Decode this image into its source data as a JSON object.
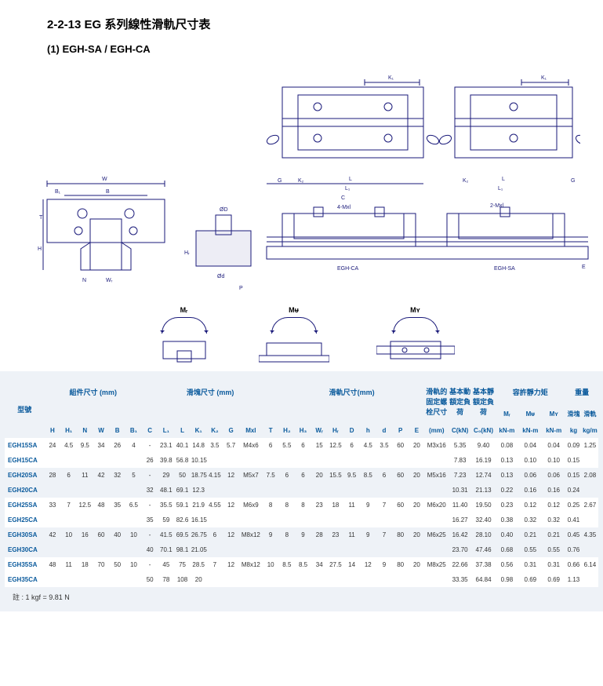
{
  "titles": {
    "main": "2-2-13 EG 系列線性滑軌尺寸表",
    "sub": "(1) EGH-SA / EGH-CA"
  },
  "diagram_labels": {
    "k1": "K₁",
    "w": "W",
    "b1": "B₁",
    "b": "B",
    "t": "T",
    "h": "H",
    "n": "N",
    "wr": "Wᵣ",
    "od_big": "ØD",
    "od_small": "Ød",
    "hr": "Hᵣ",
    "p": "P",
    "e": "E",
    "g": "G",
    "k2": "K₂",
    "l": "L",
    "l1": "L₁",
    "c": "C",
    "m4": "4-Mxl",
    "m2": "2-Mxl",
    "egh_ca": "EGH-CA",
    "egh_sa": "EGH-SA"
  },
  "moments": {
    "mr": "Mᵣ",
    "mp": "Mᵾ",
    "my": "Mʏ"
  },
  "table": {
    "group_headers": {
      "model": "型號",
      "assembly": "組件尺寸\n(mm)",
      "block": "滑塊尺寸 (mm)",
      "rail": "滑軌尺寸(mm)",
      "bolt": "滑軌的固定螺栓尺寸",
      "dyn": "基本動額定負荷",
      "stat": "基本靜額定負荷",
      "moment": "容許靜力矩",
      "weight": "重量"
    },
    "col_headers": [
      "H",
      "H₁",
      "N",
      "W",
      "B",
      "B₁",
      "C",
      "L₁",
      "L",
      "K₁",
      "K₂",
      "G",
      "Mxl",
      "T",
      "H₂",
      "H₃",
      "Wᵣ",
      "Hᵣ",
      "D",
      "h",
      "d",
      "P",
      "E",
      "(mm)",
      "C(kN)",
      "C₀(kN)",
      "Mᵣ",
      "Mᵾ",
      "Mʏ",
      "滑塊",
      "滑軌"
    ],
    "subunits": {
      "mr": "kN-m",
      "mp": "kN-m",
      "my": "kN-m",
      "wb": "kg",
      "wr": "kg/m"
    },
    "rows": [
      {
        "model": "EGH15SA",
        "H": "24",
        "H1": "4.5",
        "N": "9.5",
        "W": "34",
        "B": "26",
        "B1": "4",
        "C": "-",
        "L1": "23.1",
        "L": "40.1",
        "K1": "14.8",
        "K2": "3.5",
        "G": "5.7",
        "Mxl": "M4x6",
        "T": "6",
        "H2": "5.5",
        "H3": "6",
        "Wr": "15",
        "Hr": "12.5",
        "D": "6",
        "h": "4.5",
        "d": "3.5",
        "P": "60",
        "E": "20",
        "bolt": "M3x16",
        "Ck": "5.35",
        "C0": "9.40",
        "Mr": "0.08",
        "Mp": "0.04",
        "My": "0.04",
        "Wb": "0.09",
        "Wrw": "1.25"
      },
      {
        "model": "EGH15CA",
        "H": "",
        "H1": "",
        "N": "",
        "W": "",
        "B": "",
        "B1": "",
        "C": "26",
        "L1": "39.8",
        "L": "56.8",
        "K1": "10.15",
        "K2": "",
        "G": "",
        "Mxl": "",
        "T": "",
        "H2": "",
        "H3": "",
        "Wr": "",
        "Hr": "",
        "D": "",
        "h": "",
        "d": "",
        "P": "",
        "E": "",
        "bolt": "",
        "Ck": "7.83",
        "C0": "16.19",
        "Mr": "0.13",
        "Mp": "0.10",
        "My": "0.10",
        "Wb": "0.15",
        "Wrw": ""
      },
      {
        "model": "EGH20SA",
        "H": "28",
        "H1": "6",
        "N": "11",
        "W": "42",
        "B": "32",
        "B1": "5",
        "C": "-",
        "L1": "29",
        "L": "50",
        "K1": "18.75",
        "K2": "4.15",
        "G": "12",
        "Mxl": "M5x7",
        "T": "7.5",
        "H2": "6",
        "H3": "6",
        "Wr": "20",
        "Hr": "15.5",
        "D": "9.5",
        "h": "8.5",
        "d": "6",
        "P": "60",
        "E": "20",
        "bolt": "M5x16",
        "Ck": "7.23",
        "C0": "12.74",
        "Mr": "0.13",
        "Mp": "0.06",
        "My": "0.06",
        "Wb": "0.15",
        "Wrw": "2.08"
      },
      {
        "model": "EGH20CA",
        "H": "",
        "H1": "",
        "N": "",
        "W": "",
        "B": "",
        "B1": "",
        "C": "32",
        "L1": "48.1",
        "L": "69.1",
        "K1": "12.3",
        "K2": "",
        "G": "",
        "Mxl": "",
        "T": "",
        "H2": "",
        "H3": "",
        "Wr": "",
        "Hr": "",
        "D": "",
        "h": "",
        "d": "",
        "P": "",
        "E": "",
        "bolt": "",
        "Ck": "10.31",
        "C0": "21.13",
        "Mr": "0.22",
        "Mp": "0.16",
        "My": "0.16",
        "Wb": "0.24",
        "Wrw": ""
      },
      {
        "model": "EGH25SA",
        "H": "33",
        "H1": "7",
        "N": "12.5",
        "W": "48",
        "B": "35",
        "B1": "6.5",
        "C": "-",
        "L1": "35.5",
        "L": "59.1",
        "K1": "21.9",
        "K2": "4.55",
        "G": "12",
        "Mxl": "M6x9",
        "T": "8",
        "H2": "8",
        "H3": "8",
        "Wr": "23",
        "Hr": "18",
        "D": "11",
        "h": "9",
        "d": "7",
        "P": "60",
        "E": "20",
        "bolt": "M6x20",
        "Ck": "11.40",
        "C0": "19.50",
        "Mr": "0.23",
        "Mp": "0.12",
        "My": "0.12",
        "Wb": "0.25",
        "Wrw": "2.67"
      },
      {
        "model": "EGH25CA",
        "H": "",
        "H1": "",
        "N": "",
        "W": "",
        "B": "",
        "B1": "",
        "C": "35",
        "L1": "59",
        "L": "82.6",
        "K1": "16.15",
        "K2": "",
        "G": "",
        "Mxl": "",
        "T": "",
        "H2": "",
        "H3": "",
        "Wr": "",
        "Hr": "",
        "D": "",
        "h": "",
        "d": "",
        "P": "",
        "E": "",
        "bolt": "",
        "Ck": "16.27",
        "C0": "32.40",
        "Mr": "0.38",
        "Mp": "0.32",
        "My": "0.32",
        "Wb": "0.41",
        "Wrw": ""
      },
      {
        "model": "EGH30SA",
        "H": "42",
        "H1": "10",
        "N": "16",
        "W": "60",
        "B": "40",
        "B1": "10",
        "C": "-",
        "L1": "41.5",
        "L": "69.5",
        "K1": "26.75",
        "K2": "6",
        "G": "12",
        "Mxl": "M8x12",
        "T": "9",
        "H2": "8",
        "H3": "9",
        "Wr": "28",
        "Hr": "23",
        "D": "11",
        "h": "9",
        "d": "7",
        "P": "80",
        "E": "20",
        "bolt": "M6x25",
        "Ck": "16.42",
        "C0": "28.10",
        "Mr": "0.40",
        "Mp": "0.21",
        "My": "0.21",
        "Wb": "0.45",
        "Wrw": "4.35"
      },
      {
        "model": "EGH30CA",
        "H": "",
        "H1": "",
        "N": "",
        "W": "",
        "B": "",
        "B1": "",
        "C": "40",
        "L1": "70.1",
        "L": "98.1",
        "K1": "21.05",
        "K2": "",
        "G": "",
        "Mxl": "",
        "T": "",
        "H2": "",
        "H3": "",
        "Wr": "",
        "Hr": "",
        "D": "",
        "h": "",
        "d": "",
        "P": "",
        "E": "",
        "bolt": "",
        "Ck": "23.70",
        "C0": "47.46",
        "Mr": "0.68",
        "Mp": "0.55",
        "My": "0.55",
        "Wb": "0.76",
        "Wrw": ""
      },
      {
        "model": "EGH35SA",
        "H": "48",
        "H1": "11",
        "N": "18",
        "W": "70",
        "B": "50",
        "B1": "10",
        "C": "-",
        "L1": "45",
        "L": "75",
        "K1": "28.5",
        "K2": "7",
        "G": "12",
        "Mxl": "M8x12",
        "T": "10",
        "H2": "8.5",
        "H3": "8.5",
        "Wr": "34",
        "Hr": "27.5",
        "D": "14",
        "h": "12",
        "d": "9",
        "P": "80",
        "E": "20",
        "bolt": "M8x25",
        "Ck": "22.66",
        "C0": "37.38",
        "Mr": "0.56",
        "Mp": "0.31",
        "My": "0.31",
        "Wb": "0.66",
        "Wrw": "6.14"
      },
      {
        "model": "EGH35CA",
        "H": "",
        "H1": "",
        "N": "",
        "W": "",
        "B": "",
        "B1": "",
        "C": "50",
        "L1": "78",
        "L": "108",
        "K1": "20",
        "K2": "",
        "G": "",
        "Mxl": "",
        "T": "",
        "H2": "",
        "H3": "",
        "Wr": "",
        "Hr": "",
        "D": "",
        "h": "",
        "d": "",
        "P": "",
        "E": "",
        "bolt": "",
        "Ck": "33.35",
        "C0": "64.84",
        "Mr": "0.98",
        "Mp": "0.69",
        "My": "0.69",
        "Wb": "1.13",
        "Wrw": ""
      }
    ]
  },
  "footnote": "註 : 1 kgf = 9.81 N",
  "colors": {
    "ink": "#1a1a7a",
    "header_text": "#0a5a9c",
    "bg_gray": "#eef2f7",
    "bg_white": "#ffffff"
  }
}
